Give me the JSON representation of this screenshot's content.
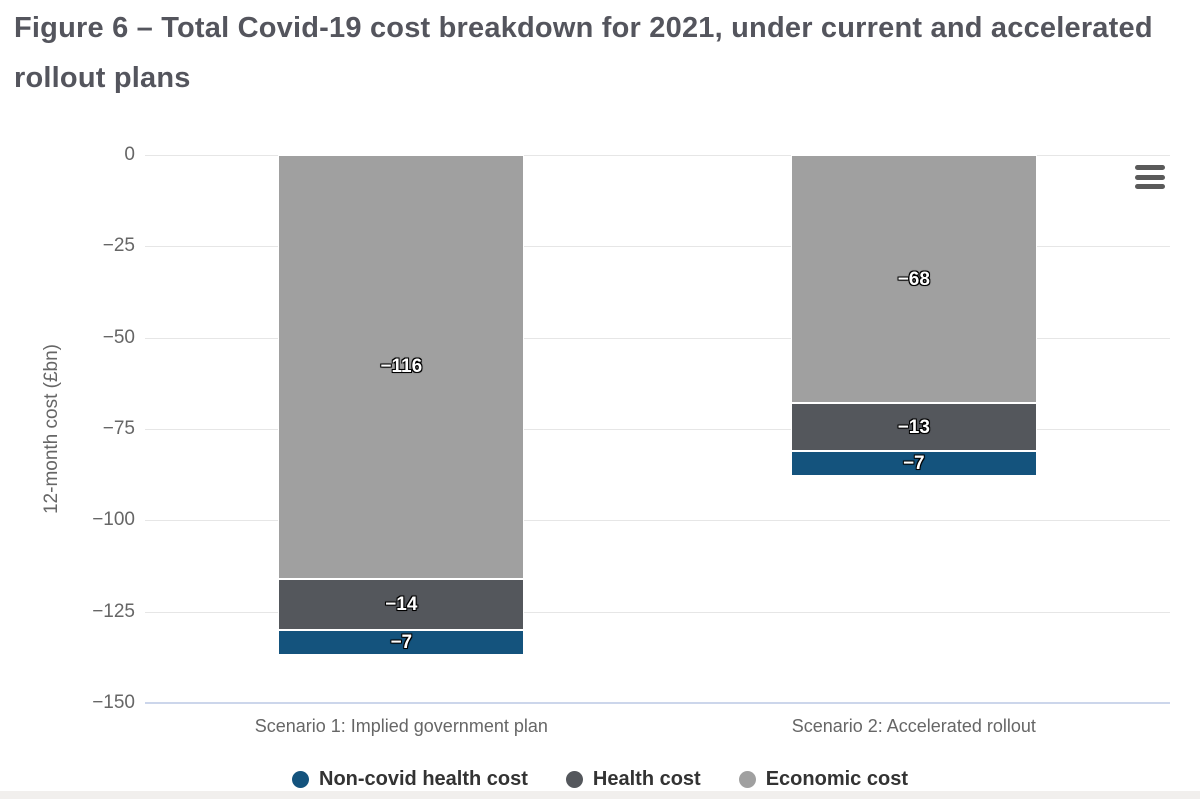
{
  "chart_data": {
    "type": "bar",
    "subtype": "stacked-column",
    "title": "Figure 6 – Total Covid-19 cost breakdown for 2021, under current and accelerated rollout plans",
    "ylabel": "12-month cost (£bn)",
    "xlabel": "",
    "ylim": [
      -150,
      0
    ],
    "ytick_values": [
      0,
      -25,
      -50,
      -75,
      -100,
      -125,
      -150
    ],
    "ytick_labels": [
      "0",
      "−25",
      "−50",
      "−75",
      "−100",
      "−125",
      "−150"
    ],
    "grid": true,
    "legend_position": "bottom",
    "categories": [
      "Scenario 1: Implied government plan",
      "Scenario 2: Accelerated rollout"
    ],
    "series": [
      {
        "name": "Non-covid health cost",
        "color": "#14537d",
        "values": [
          -7,
          -7
        ]
      },
      {
        "name": "Health cost",
        "color": "#54575c",
        "values": [
          -14,
          -13
        ]
      },
      {
        "name": "Economic cost",
        "color": "#a0a0a0",
        "values": [
          -116,
          -68
        ]
      }
    ],
    "stack_order_from_zero": [
      "Economic cost",
      "Health cost",
      "Non-covid health cost"
    ],
    "data_label_style": "white bold with black outline"
  },
  "icons": {
    "menu": "hamburger-three-bars"
  },
  "colors": {
    "gridline": "#e6e6e6",
    "x_axis_line": "#ccd6eb",
    "axis_text": "#666666",
    "legend_text": "#333333",
    "title_text": "#54555d"
  }
}
